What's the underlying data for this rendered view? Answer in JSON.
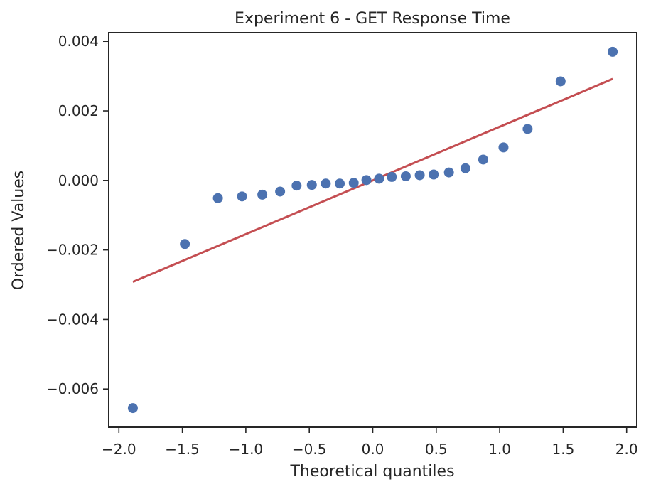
{
  "chart_data": {
    "type": "scatter",
    "title": "Experiment 6 - GET Response Time",
    "xlabel": "Theoretical quantiles",
    "ylabel": "Ordered Values",
    "xlim": [
      -2.08,
      2.08
    ],
    "ylim": [
      -0.0071,
      0.00425
    ],
    "x_ticks": [
      -2.0,
      -1.5,
      -1.0,
      -0.5,
      0.0,
      0.5,
      1.0,
      1.5,
      2.0
    ],
    "x_tick_labels": [
      "−2.0",
      "−1.5",
      "−1.0",
      "−0.5",
      "0.0",
      "0.5",
      "1.0",
      "1.5",
      "2.0"
    ],
    "y_ticks": [
      -0.006,
      -0.004,
      -0.002,
      0.0,
      0.002,
      0.004
    ],
    "y_tick_labels": [
      "−0.006",
      "−0.004",
      "−0.002",
      "0.000",
      "0.002",
      "0.004"
    ],
    "grid": false,
    "series": [
      {
        "kind": "points",
        "color": "#4c72b0",
        "x": [
          -1.89,
          -1.48,
          -1.22,
          -1.03,
          -0.87,
          -0.73,
          -0.6,
          -0.48,
          -0.37,
          -0.26,
          -0.15,
          -0.05,
          0.05,
          0.15,
          0.26,
          0.37,
          0.48,
          0.6,
          0.73,
          0.87,
          1.03,
          1.22,
          1.48,
          1.89
        ],
        "y": [
          -0.00655,
          -0.00183,
          -0.00051,
          -0.00046,
          -0.00041,
          -0.00032,
          -0.00015,
          -0.00013,
          -9e-05,
          -9e-05,
          -7e-05,
          1e-05,
          5e-05,
          0.0001,
          0.00012,
          0.00015,
          0.00017,
          0.00023,
          0.00035,
          0.0006,
          0.00095,
          0.00148,
          0.00285,
          0.0037
        ]
      },
      {
        "kind": "line",
        "color": "#c44e52",
        "x": [
          -1.89,
          1.89
        ],
        "y": [
          -0.00292,
          0.00292
        ]
      }
    ]
  }
}
